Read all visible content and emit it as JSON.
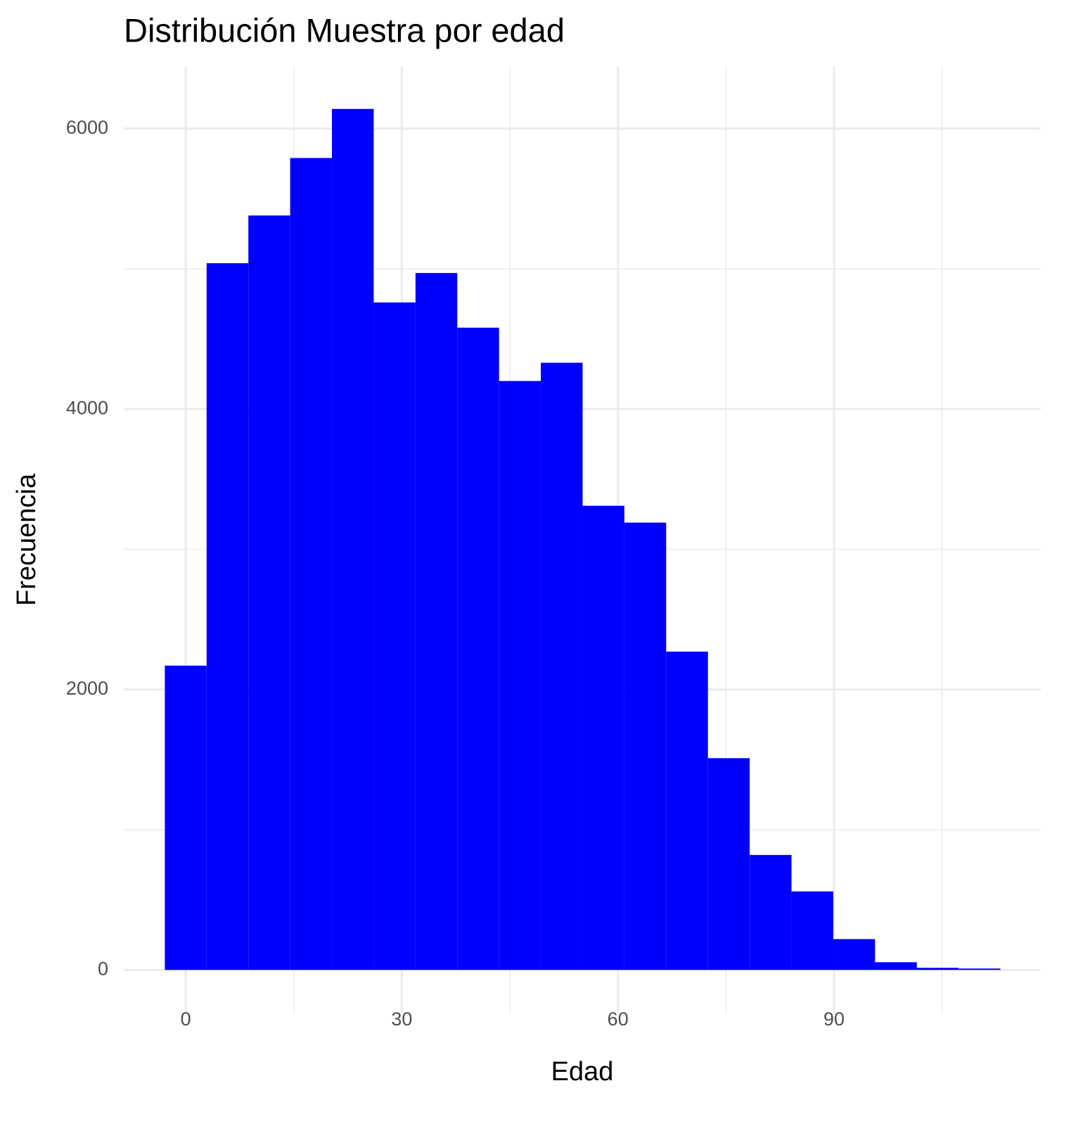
{
  "chart_data": {
    "type": "histogram",
    "title": "Distribución Muestra por edad",
    "x_label": "Edad",
    "y_label": "Frecuencia",
    "bins": [
      -2.9,
      2.9,
      8.7,
      14.5,
      20.3,
      26.1,
      31.9,
      37.7,
      43.5,
      49.3,
      55.1,
      60.9,
      66.7,
      72.5,
      78.3,
      84.1,
      89.9,
      95.7,
      101.5,
      107.3,
      113.1
    ],
    "values": [
      2170,
      5040,
      5380,
      5790,
      6140,
      4760,
      4970,
      4580,
      4200,
      4330,
      3310,
      3190,
      2270,
      1510,
      820,
      560,
      220,
      55,
      15,
      10
    ],
    "color": "#0000ff",
    "xlim": [
      -8.6,
      118.7
    ],
    "xticks": [
      0,
      30,
      60,
      90
    ],
    "xminor": [
      15,
      45,
      75,
      105
    ],
    "ylim": [
      -310,
      6440
    ],
    "yticks": [
      0,
      2000,
      4000,
      6000
    ],
    "yminor": [
      1000,
      3000,
      5000
    ],
    "grid": true
  }
}
